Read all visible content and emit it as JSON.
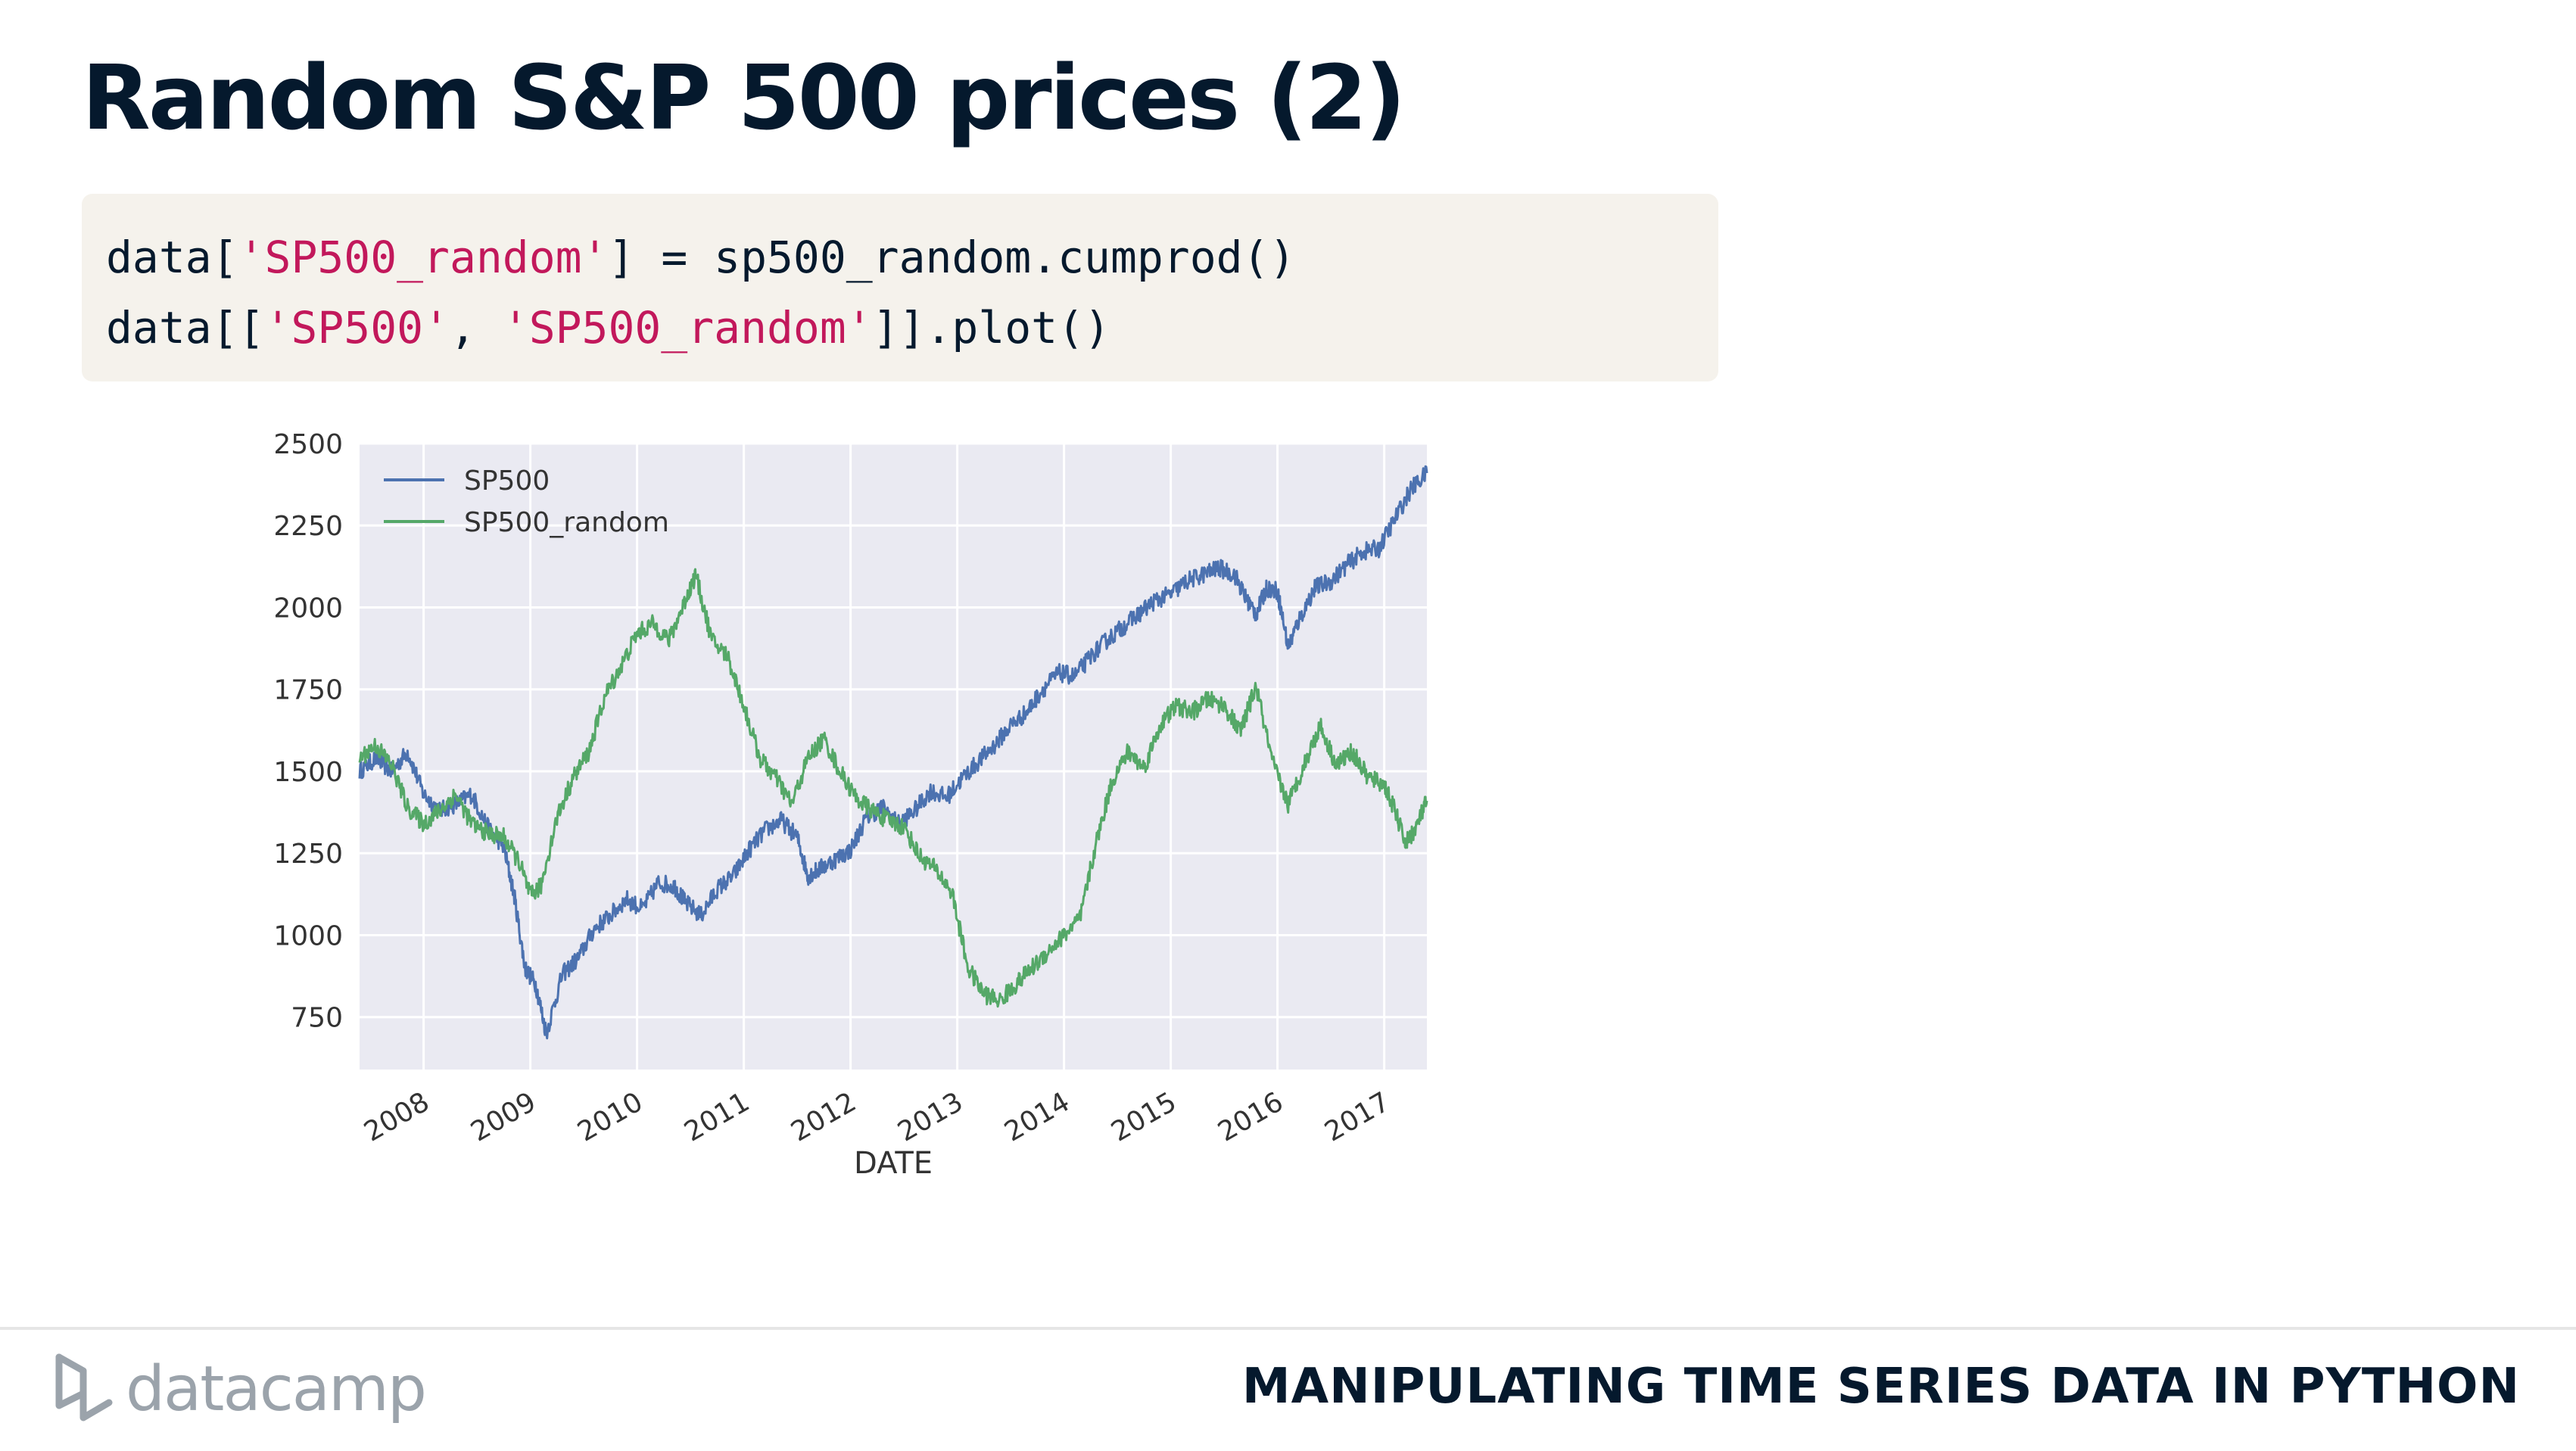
{
  "slide": {
    "title": "Random S&P 500 prices (2)",
    "code": {
      "line1": {
        "p1": "data[",
        "s1": "'SP500_random'",
        "p2": "] = sp500_random.cumprod()"
      },
      "line2": {
        "p1": "data[[",
        "s1": "'SP500'",
        "p2": ", ",
        "s2": "'SP500_random'",
        "p3": "]].plot()"
      }
    }
  },
  "footer": {
    "brand": "datacamp",
    "course": "MANIPULATING TIME SERIES DATA IN PYTHON"
  },
  "colors": {
    "sp500": "#4c72b0",
    "sp500_random": "#55a868",
    "plot_bg": "#eaeaf2",
    "grid": "#ffffff",
    "string": "#c2185b"
  },
  "chart_data": {
    "type": "line",
    "title": "",
    "xlabel": "DATE",
    "ylabel": "",
    "xlim": [
      2007.4,
      2017.4
    ],
    "ylim": [
      590,
      2500
    ],
    "x_ticks": [
      2008,
      2009,
      2010,
      2011,
      2012,
      2013,
      2014,
      2015,
      2016,
      2017
    ],
    "x_tick_labels": [
      "2008",
      "2009",
      "2010",
      "2011",
      "2012",
      "2013",
      "2014",
      "2015",
      "2016",
      "2017"
    ],
    "y_ticks": [
      750,
      1000,
      1250,
      1500,
      1750,
      2000,
      2250,
      2500
    ],
    "y_tick_labels": [
      "750",
      "1000",
      "1250",
      "1500",
      "1750",
      "2000",
      "2250",
      "2500"
    ],
    "legend": {
      "location": "top-left",
      "entries": [
        "SP500",
        "SP500_random"
      ]
    },
    "grid": true,
    "series": [
      {
        "name": "SP500",
        "x": [
          2007.4,
          2007.55,
          2007.7,
          2007.85,
          2008.0,
          2008.15,
          2008.3,
          2008.45,
          2008.6,
          2008.75,
          2008.85,
          2008.95,
          2009.05,
          2009.15,
          2009.3,
          2009.45,
          2009.6,
          2009.75,
          2009.9,
          2010.05,
          2010.2,
          2010.35,
          2010.45,
          2010.6,
          2010.75,
          2010.9,
          2011.05,
          2011.2,
          2011.35,
          2011.5,
          2011.6,
          2011.7,
          2011.85,
          2012.0,
          2012.15,
          2012.3,
          2012.45,
          2012.6,
          2012.75,
          2012.9,
          2013.05,
          2013.2,
          2013.35,
          2013.5,
          2013.65,
          2013.8,
          2013.95,
          2014.1,
          2014.25,
          2014.4,
          2014.55,
          2014.7,
          2014.85,
          2015.0,
          2015.15,
          2015.3,
          2015.45,
          2015.6,
          2015.7,
          2015.8,
          2015.9,
          2016.0,
          2016.1,
          2016.2,
          2016.35,
          2016.5,
          2016.65,
          2016.8,
          2016.95,
          2017.1,
          2017.25,
          2017.4
        ],
        "y": [
          1500,
          1540,
          1500,
          1560,
          1430,
          1380,
          1400,
          1430,
          1330,
          1270,
          1120,
          900,
          850,
          700,
          880,
          930,
          1020,
          1060,
          1110,
          1080,
          1160,
          1150,
          1100,
          1060,
          1140,
          1180,
          1260,
          1320,
          1350,
          1300,
          1180,
          1200,
          1230,
          1260,
          1360,
          1390,
          1340,
          1380,
          1440,
          1420,
          1480,
          1530,
          1580,
          1640,
          1680,
          1750,
          1800,
          1790,
          1850,
          1900,
          1940,
          1980,
          2020,
          2040,
          2080,
          2100,
          2120,
          2100,
          2030,
          1980,
          2060,
          2050,
          1880,
          1960,
          2060,
          2080,
          2130,
          2170,
          2180,
          2270,
          2360,
          2410
        ]
      },
      {
        "name": "SP500_random",
        "x": [
          2007.4,
          2007.55,
          2007.7,
          2007.85,
          2008.0,
          2008.15,
          2008.3,
          2008.45,
          2008.6,
          2008.75,
          2008.9,
          2009.0,
          2009.1,
          2009.25,
          2009.4,
          2009.55,
          2009.7,
          2009.85,
          2010.0,
          2010.15,
          2010.3,
          2010.45,
          2010.55,
          2010.7,
          2010.85,
          2011.0,
          2011.15,
          2011.3,
          2011.45,
          2011.6,
          2011.75,
          2011.9,
          2012.05,
          2012.2,
          2012.35,
          2012.5,
          2012.65,
          2012.8,
          2012.95,
          2013.1,
          2013.25,
          2013.4,
          2013.55,
          2013.7,
          2013.85,
          2014.0,
          2014.15,
          2014.3,
          2014.45,
          2014.6,
          2014.75,
          2014.9,
          2015.05,
          2015.2,
          2015.35,
          2015.5,
          2015.65,
          2015.8,
          2015.95,
          2016.1,
          2016.25,
          2016.4,
          2016.55,
          2016.7,
          2016.85,
          2017.0,
          2017.1,
          2017.2,
          2017.3,
          2017.4
        ],
        "y": [
          1540,
          1580,
          1520,
          1390,
          1340,
          1380,
          1430,
          1340,
          1310,
          1300,
          1220,
          1120,
          1150,
          1360,
          1480,
          1560,
          1730,
          1820,
          1920,
          1950,
          1900,
          2020,
          2100,
          1900,
          1850,
          1700,
          1540,
          1480,
          1400,
          1540,
          1600,
          1500,
          1420,
          1380,
          1350,
          1330,
          1240,
          1200,
          1130,
          900,
          820,
          800,
          850,
          900,
          950,
          1000,
          1050,
          1280,
          1470,
          1560,
          1510,
          1640,
          1700,
          1680,
          1720,
          1700,
          1620,
          1760,
          1530,
          1400,
          1520,
          1640,
          1520,
          1560,
          1480,
          1460,
          1380,
          1280,
          1330,
          1410
        ]
      }
    ]
  }
}
